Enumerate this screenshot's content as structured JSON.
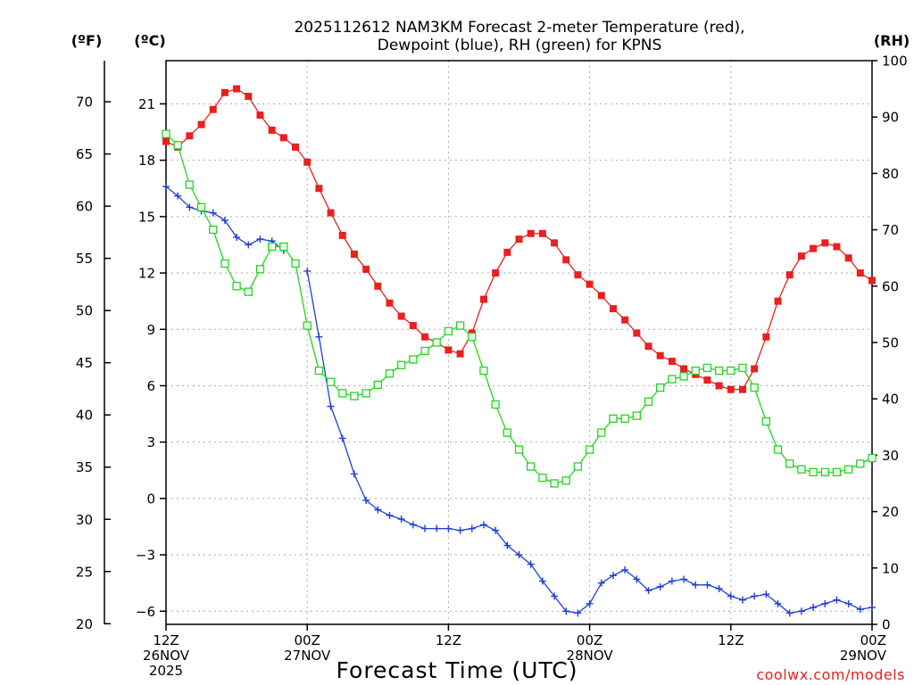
{
  "chart_data": {
    "type": "line",
    "title_lines": [
      "2025112612 NAM3KM Forecast 2-meter Temperature (red),",
      "Dewpoint (blue), RH (green) for KPNS"
    ],
    "xlabel": "Forecast Time (UTC)",
    "credit": "coolwx.com/models",
    "left_unit_f": "(ºF)",
    "left_unit_c": "(ºC)",
    "right_unit": "(RH)",
    "x_range_hours": [
      0,
      60
    ],
    "x_tick_hours": [
      0,
      12,
      24,
      36,
      48,
      60
    ],
    "x_tick_labels": [
      [
        "12Z",
        "26NOV",
        "2025"
      ],
      [
        "00Z",
        "27NOV"
      ],
      [
        "12Z"
      ],
      [
        "00Z",
        "28NOV"
      ],
      [
        "12Z"
      ],
      [
        "00Z",
        "29NOV"
      ]
    ],
    "y_range_c": [
      -6.7,
      23.3
    ],
    "y_ticks_c": [
      -6,
      -3,
      0,
      3,
      6,
      9,
      12,
      15,
      18,
      21
    ],
    "y_ticks_f": [
      20,
      25,
      30,
      35,
      40,
      45,
      50,
      55,
      60,
      65,
      70
    ],
    "y_range_rh": [
      0,
      100
    ],
    "y_ticks_rh": [
      0,
      10,
      20,
      30,
      40,
      50,
      60,
      70,
      80,
      90,
      100
    ],
    "series": [
      {
        "name": "2-meter Temperature",
        "axis": "celsius",
        "color": "#e8201f",
        "marker": "filled-square",
        "start_hour": 0,
        "step_hours": 1,
        "values": [
          19.0,
          18.7,
          19.3,
          19.9,
          20.7,
          21.6,
          21.8,
          21.4,
          20.4,
          19.6,
          19.2,
          18.7,
          17.9,
          16.5,
          15.2,
          14.0,
          13.0,
          12.2,
          11.3,
          10.4,
          9.7,
          9.2,
          8.6,
          8.3,
          7.9,
          7.7,
          8.8,
          10.6,
          12.0,
          13.1,
          13.8,
          14.1,
          14.1,
          13.6,
          12.7,
          11.9,
          11.4,
          10.8,
          10.1,
          9.5,
          8.8,
          8.1,
          7.6,
          7.3,
          6.9,
          6.6,
          6.3,
          6.0,
          5.8,
          5.8,
          6.9,
          8.6,
          10.5,
          11.9,
          12.9,
          13.3,
          13.6,
          13.4,
          12.8,
          12.0,
          11.6
        ]
      },
      {
        "name": "Dewpoint",
        "axis": "celsius",
        "color": "#1e3fd8",
        "marker": "plus",
        "start_hour": 0,
        "step_hours": 1,
        "values": [
          16.6,
          16.1,
          15.5,
          15.3,
          15.2,
          14.8,
          13.9,
          13.5,
          13.8,
          13.7,
          13.2,
          null,
          12.1,
          8.6,
          4.9,
          3.2,
          1.3,
          -0.1,
          -0.6,
          -0.9,
          -1.1,
          -1.4,
          -1.6,
          -1.6,
          -1.6,
          -1.7,
          -1.6,
          -1.4,
          -1.7,
          -2.5,
          -3.0,
          -3.5,
          -4.4,
          -5.2,
          -6.0,
          -6.1,
          -5.6,
          -4.5,
          -4.1,
          -3.8,
          -4.3,
          -4.9,
          -4.7,
          -4.4,
          -4.3,
          -4.6,
          -4.6,
          -4.8,
          -5.2,
          -5.4,
          -5.2,
          -5.1,
          -5.6,
          -6.1,
          -6.0,
          -5.8,
          -5.6,
          -5.4,
          -5.6,
          -5.9,
          -5.8
        ]
      },
      {
        "name": "RH",
        "axis": "rh",
        "color": "#22d422",
        "marker": "open-square",
        "start_hour": 0,
        "step_hours": 1,
        "values": [
          87,
          85,
          78,
          74,
          70,
          64,
          60,
          59,
          63,
          67,
          67,
          64,
          53,
          45,
          43,
          41,
          40.5,
          41,
          42.5,
          44.5,
          46,
          47,
          48.5,
          50,
          52,
          53,
          51,
          45,
          39,
          34,
          31,
          28,
          26,
          25,
          25.5,
          28,
          31,
          34,
          36.5,
          36.5,
          37,
          39.5,
          42,
          43.5,
          44,
          45,
          45.5,
          45,
          45,
          45.5,
          42,
          36,
          31,
          28.5,
          27.5,
          27,
          27,
          27,
          27.5,
          28.5,
          29.5
        ]
      }
    ]
  }
}
